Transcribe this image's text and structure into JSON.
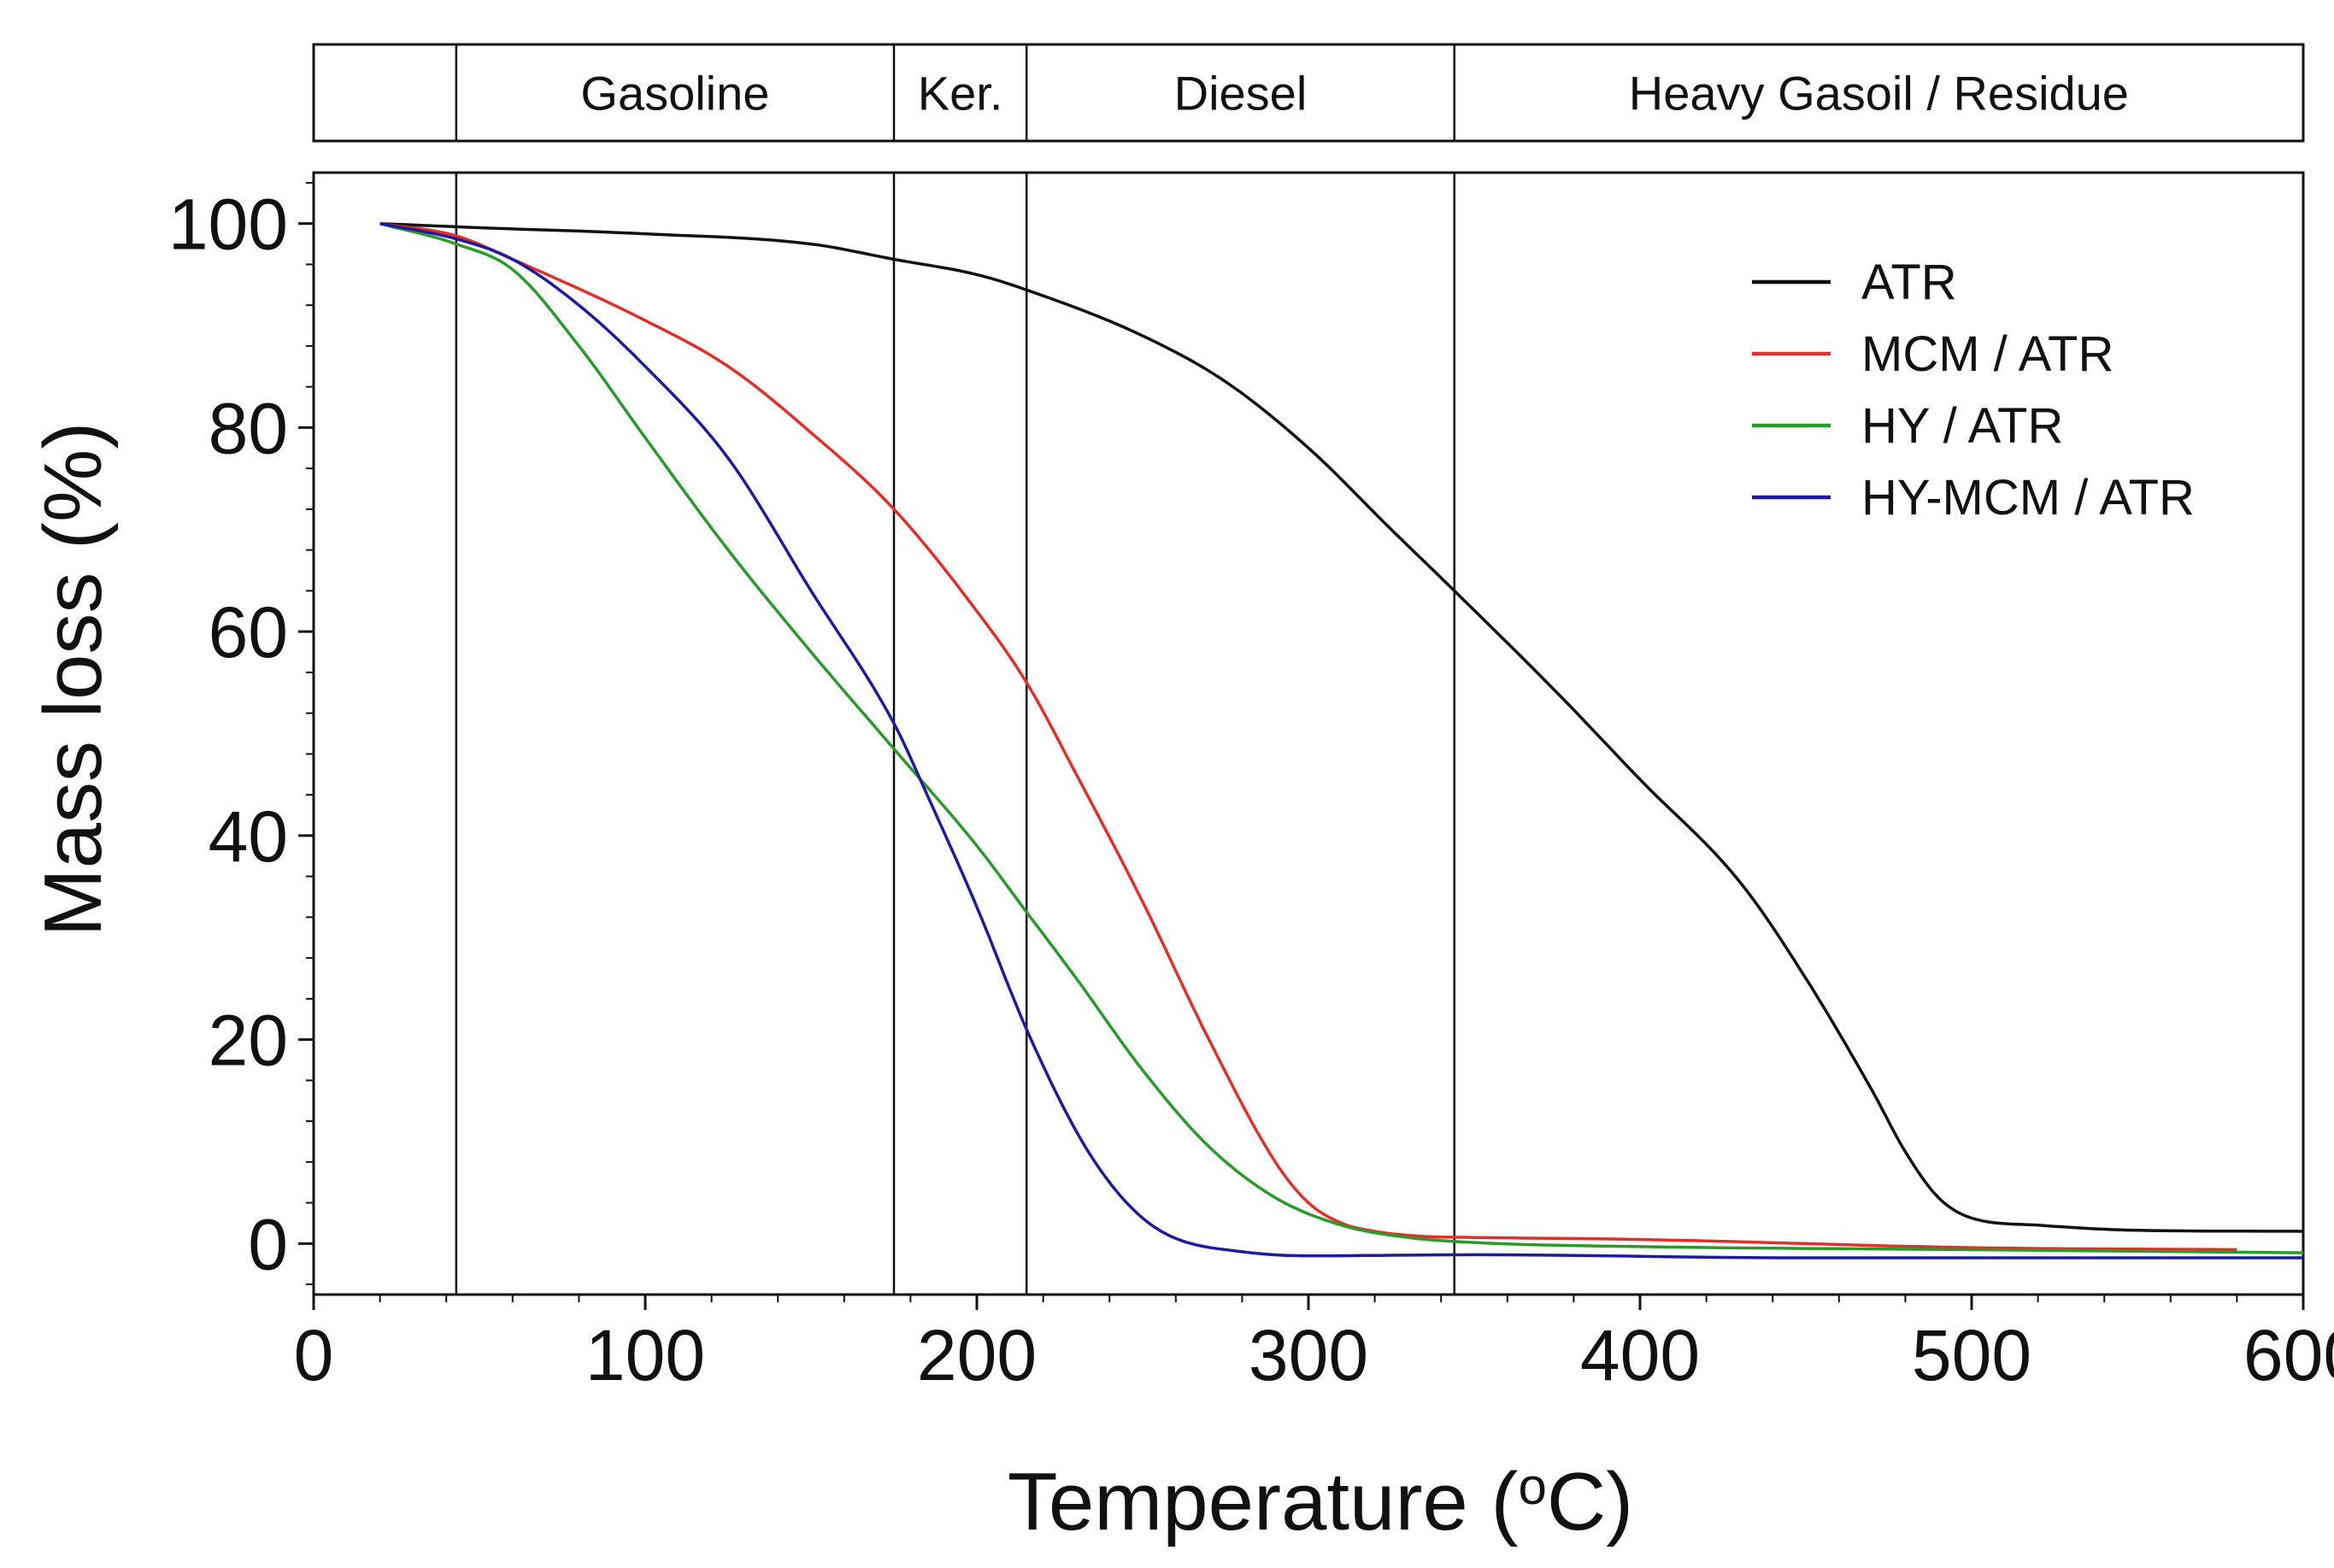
{
  "chart_data": {
    "type": "line",
    "xlabel": {
      "prefix": "Temperature (",
      "superscript": "o",
      "suffix": "C)"
    },
    "ylabel": "Mass loss (%)",
    "xlim": [
      0,
      600
    ],
    "ylim": [
      -5,
      105
    ],
    "x_ticks": [
      0,
      100,
      200,
      300,
      400,
      500,
      600
    ],
    "y_ticks": [
      0,
      20,
      40,
      60,
      80,
      100
    ],
    "x_tick_labels": [
      "0",
      "100",
      "200",
      "300",
      "400",
      "500",
      "600"
    ],
    "y_tick_labels": [
      "0",
      "20",
      "40",
      "60",
      "80",
      "100"
    ],
    "grid": false,
    "legend_position": "top-right",
    "fraction_boundaries": [
      43,
      175,
      215,
      344
    ],
    "fraction_bands": [
      {
        "label": "",
        "from": 0,
        "to": 43
      },
      {
        "label": "Gasoline",
        "from": 43,
        "to": 175
      },
      {
        "label": "Ker.",
        "from": 175,
        "to": 215
      },
      {
        "label": "Diesel",
        "from": 215,
        "to": 344
      },
      {
        "label": "Heavy Gasoil  / Residue",
        "from": 344,
        "to": 600
      }
    ],
    "series": [
      {
        "name": "ATR",
        "color": "#111111",
        "x": [
          20,
          50,
          100,
          150,
          175,
          200,
          215,
          250,
          275,
          300,
          325,
          344,
          375,
          400,
          430,
          450,
          470,
          480,
          490,
          500,
          520,
          550,
          600
        ],
        "y": [
          100,
          99.6,
          99,
          98,
          96.5,
          95,
          93.5,
          89,
          84.5,
          78,
          70,
          64,
          54,
          45.5,
          35.5,
          26,
          15,
          9,
          4.5,
          2.5,
          1.8,
          1.3,
          1.2
        ]
      },
      {
        "name": "MCM / ATR",
        "color": "#e0302a",
        "x": [
          20,
          43,
          60,
          100,
          125,
          150,
          175,
          200,
          215,
          230,
          250,
          270,
          290,
          300,
          310,
          320,
          335,
          350,
          400,
          500,
          580
        ],
        "y": [
          100,
          98.8,
          96.5,
          90.5,
          86,
          79.5,
          72,
          62,
          55,
          46,
          33.5,
          20,
          8,
          4,
          2,
          1.2,
          0.7,
          0.6,
          0.4,
          -0.4,
          -0.6
        ]
      },
      {
        "name": "HY / ATR",
        "color": "#2a9a2a",
        "x": [
          20,
          43,
          60,
          80,
          100,
          125,
          150,
          175,
          200,
          215,
          230,
          250,
          270,
          290,
          310,
          330,
          350,
          400,
          500,
          600
        ],
        "y": [
          100,
          98,
          95.5,
          88,
          79,
          68,
          58,
          48.5,
          39,
          32.5,
          26,
          17,
          9.5,
          4.5,
          1.8,
          0.6,
          0.1,
          -0.3,
          -0.6,
          -0.9
        ]
      },
      {
        "name": "HY-MCM / ATR",
        "color": "#1c1c9c",
        "x": [
          20,
          43,
          60,
          80,
          100,
          125,
          150,
          175,
          185,
          200,
          215,
          230,
          240,
          250,
          260,
          280,
          300,
          350,
          450,
          600
        ],
        "y": [
          100,
          98.5,
          96.5,
          92,
          86,
          77,
          64,
          51,
          44,
          33,
          21,
          11,
          6,
          2.5,
          0.5,
          -0.8,
          -1.2,
          -1.1,
          -1.4,
          -1.4
        ]
      }
    ]
  }
}
